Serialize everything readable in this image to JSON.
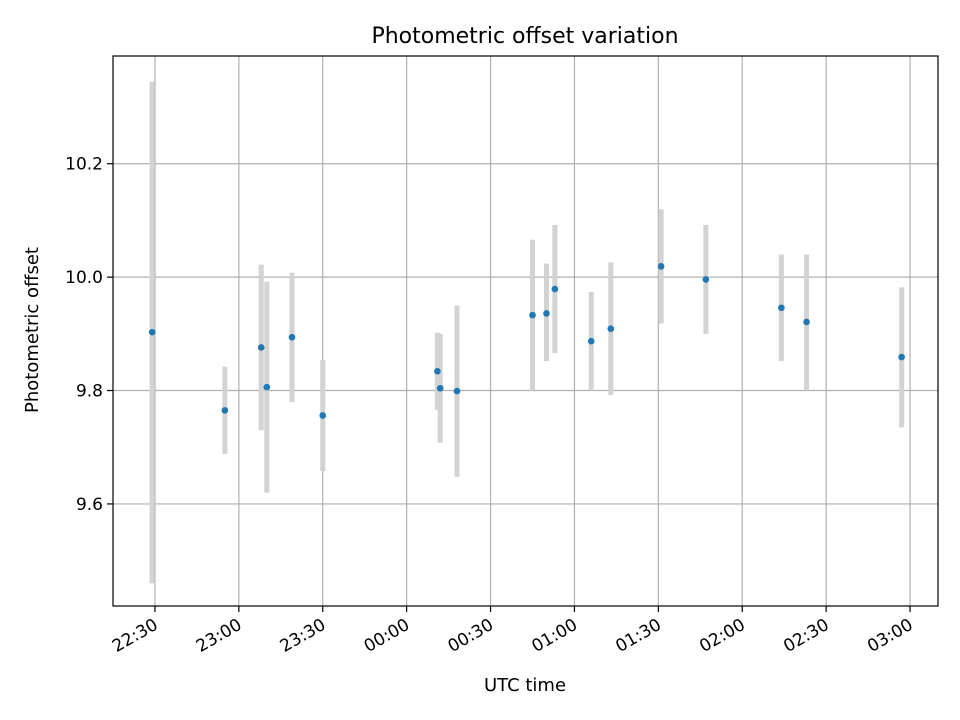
{
  "chart_data": {
    "type": "scatter",
    "title": "Photometric offset variation",
    "xlabel": "UTC time",
    "ylabel": "Photometric offset",
    "grid": true,
    "x_ticks": [
      "22:30",
      "23:00",
      "23:30",
      "00:00",
      "00:30",
      "01:00",
      "01:30",
      "02:00",
      "02:30",
      "03:00"
    ],
    "y_ticks": [
      9.6,
      9.8,
      10.0,
      10.2
    ],
    "xlim": [
      "22:15",
      "03:10"
    ],
    "ylim": [
      9.42,
      10.39
    ],
    "colors": {
      "point": "#1f77b4",
      "errorbar": "#d3d3d3"
    },
    "points": [
      {
        "time": "22:29",
        "value": 9.903,
        "low": 9.46,
        "high": 10.345
      },
      {
        "time": "22:55",
        "value": 9.765,
        "low": 9.688,
        "high": 9.842
      },
      {
        "time": "23:08",
        "value": 9.876,
        "low": 9.73,
        "high": 10.022
      },
      {
        "time": "23:10",
        "value": 9.806,
        "low": 9.62,
        "high": 9.992
      },
      {
        "time": "23:19",
        "value": 9.894,
        "low": 9.78,
        "high": 10.008
      },
      {
        "time": "23:30",
        "value": 9.756,
        "low": 9.658,
        "high": 9.854
      },
      {
        "time": "00:11",
        "value": 9.834,
        "low": 9.766,
        "high": 9.902
      },
      {
        "time": "00:12",
        "value": 9.804,
        "low": 9.708,
        "high": 9.9
      },
      {
        "time": "00:18",
        "value": 9.799,
        "low": 9.648,
        "high": 9.95
      },
      {
        "time": "00:45",
        "value": 9.933,
        "low": 9.8,
        "high": 10.066
      },
      {
        "time": "00:50",
        "value": 9.936,
        "low": 9.852,
        "high": 10.024
      },
      {
        "time": "00:53",
        "value": 9.979,
        "low": 9.866,
        "high": 10.092
      },
      {
        "time": "01:06",
        "value": 9.887,
        "low": 9.8,
        "high": 9.974
      },
      {
        "time": "01:13",
        "value": 9.909,
        "low": 9.792,
        "high": 10.026
      },
      {
        "time": "01:31",
        "value": 10.019,
        "low": 9.918,
        "high": 10.12
      },
      {
        "time": "01:47",
        "value": 9.996,
        "low": 9.9,
        "high": 10.092
      },
      {
        "time": "02:14",
        "value": 9.946,
        "low": 9.852,
        "high": 10.04
      },
      {
        "time": "02:23",
        "value": 9.921,
        "low": 9.8,
        "high": 10.04
      },
      {
        "time": "02:57",
        "value": 9.859,
        "low": 9.735,
        "high": 9.982
      }
    ]
  }
}
